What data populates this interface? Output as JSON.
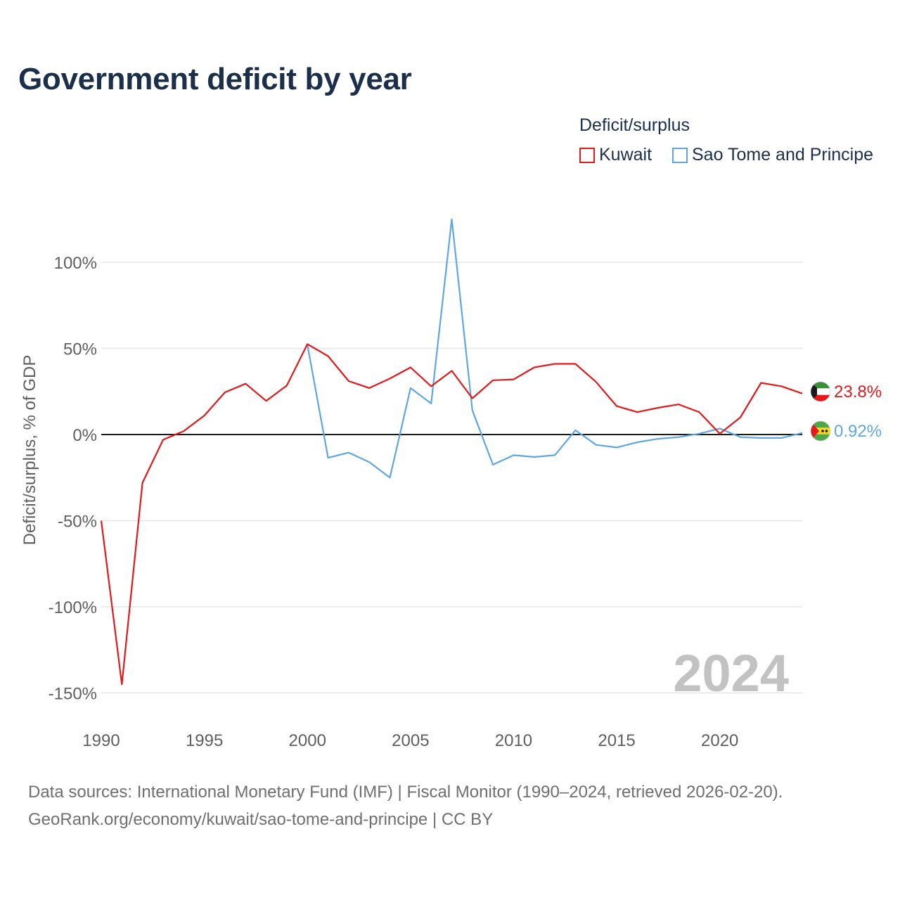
{
  "title": "Government deficit by year",
  "legend": {
    "title": "Deficit/surplus",
    "items": [
      {
        "label": "Kuwait",
        "color": "#e3191c"
      },
      {
        "label": "Sao Tome and Principe",
        "color": "#5fa7e3"
      }
    ]
  },
  "chart_data": {
    "type": "line",
    "title": "Government deficit by year",
    "xlabel": "",
    "ylabel": "Deficit/surplus, % of GDP",
    "xlim": [
      1990,
      2024
    ],
    "ylim": [
      -150,
      125
    ],
    "yticks": [
      100,
      50,
      0,
      -50,
      -100,
      -150
    ],
    "ytick_labels": [
      "100%",
      "50%",
      "0%",
      "-50%",
      "-100%",
      "-150%"
    ],
    "xticks": [
      1990,
      1995,
      2000,
      2005,
      2010,
      2015,
      2020
    ],
    "xtick_labels": [
      "1990",
      "1995",
      "2000",
      "2005",
      "2010",
      "2015",
      "2020"
    ],
    "watermark": "2024",
    "series": [
      {
        "name": "Kuwait",
        "color": "#e3191c",
        "end_label": "23.8%",
        "flag_icon": "kuwait-flag-icon",
        "x": [
          1990,
          1991,
          1992,
          1993,
          1994,
          1995,
          1996,
          1997,
          1998,
          1999,
          2000,
          2001,
          2002,
          2003,
          2004,
          2005,
          2006,
          2007,
          2008,
          2009,
          2010,
          2011,
          2012,
          2013,
          2014,
          2015,
          2016,
          2017,
          2018,
          2019,
          2020,
          2021,
          2022,
          2023,
          2024
        ],
        "values": [
          -50,
          -145,
          -28,
          -3,
          2,
          11,
          24.5,
          29.5,
          19.5,
          28.5,
          52.5,
          45.5,
          31,
          27,
          32.5,
          39,
          28,
          37,
          21,
          31.5,
          32,
          39,
          41,
          41,
          30.5,
          16.5,
          13,
          15.5,
          17.5,
          13,
          0.5,
          10,
          30,
          28,
          23.8
        ]
      },
      {
        "name": "Sao Tome and Principe",
        "color": "#5fa7e3",
        "end_label": "0.92%",
        "flag_icon": "sao-tome-flag-icon",
        "x": [
          2000,
          2001,
          2002,
          2003,
          2004,
          2005,
          2006,
          2007,
          2008,
          2009,
          2010,
          2011,
          2012,
          2013,
          2014,
          2015,
          2016,
          2017,
          2018,
          2019,
          2020,
          2021,
          2022,
          2023,
          2024
        ],
        "values": [
          52,
          -13.5,
          -10.5,
          -16,
          -25,
          27,
          18,
          125,
          14,
          -17.5,
          -12,
          -13,
          -12,
          2.5,
          -6,
          -7.5,
          -4.5,
          -2.5,
          -1.5,
          0.5,
          3.5,
          -1.5,
          -2,
          -2,
          0.92
        ]
      }
    ]
  },
  "sources": {
    "line1": "Data sources: International Monetary Fund (IMF) | Fiscal Monitor (1990–2024, retrieved 2026-02-20).",
    "line2": "GeoRank.org/economy/kuwait/sao-tome-and-principe | CC BY"
  }
}
